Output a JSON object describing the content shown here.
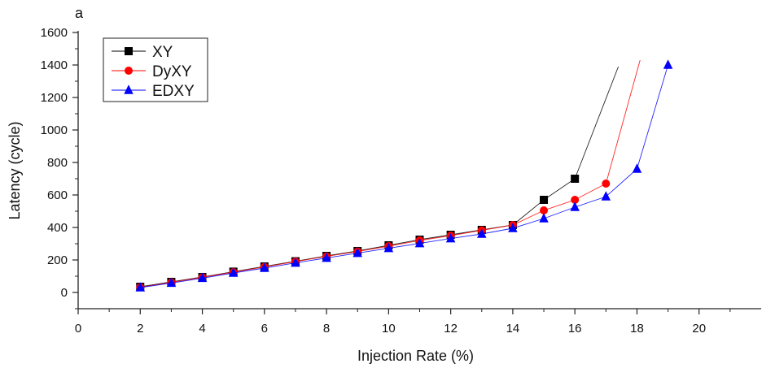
{
  "panel_label": "a",
  "chart_data": {
    "type": "line",
    "title": "",
    "xlabel": "Injection Rate (%)",
    "ylabel": "Latency (cycle)",
    "xlim": [
      0,
      22
    ],
    "ylim": [
      -100,
      1600
    ],
    "xticks": [
      0,
      2,
      4,
      6,
      8,
      10,
      12,
      14,
      16,
      18,
      20
    ],
    "yticks": [
      0,
      200,
      400,
      600,
      800,
      1000,
      1200,
      1400,
      1600
    ],
    "grid": false,
    "legend_position": "top-left",
    "series": [
      {
        "name": "XY",
        "color": "#000000",
        "marker": "square",
        "x": [
          2,
          3,
          4,
          5,
          6,
          7,
          8,
          9,
          10,
          11,
          12,
          13,
          14,
          15,
          16
        ],
        "values": [
          35,
          65,
          95,
          128,
          160,
          192,
          225,
          255,
          290,
          325,
          355,
          385,
          415,
          570,
          700
        ],
        "trend_to": [
          17.4,
          1390
        ]
      },
      {
        "name": "DyXY",
        "color": "#ff0000",
        "marker": "circle",
        "x": [
          2,
          3,
          4,
          5,
          6,
          7,
          8,
          9,
          10,
          11,
          12,
          13,
          14,
          15,
          16,
          17
        ],
        "values": [
          32,
          62,
          93,
          125,
          157,
          190,
          222,
          252,
          285,
          320,
          350,
          382,
          415,
          505,
          570,
          670
        ],
        "trend_to": [
          18.1,
          1430
        ]
      },
      {
        "name": "EDXY",
        "color": "#0000ff",
        "marker": "triangle",
        "x": [
          2,
          3,
          4,
          5,
          6,
          7,
          8,
          9,
          10,
          11,
          12,
          13,
          14,
          15,
          16,
          17,
          18,
          19
        ],
        "values": [
          30,
          58,
          88,
          120,
          150,
          182,
          212,
          242,
          272,
          302,
          332,
          360,
          395,
          455,
          525,
          590,
          760,
          1400
        ],
        "trend_to": null
      }
    ]
  }
}
